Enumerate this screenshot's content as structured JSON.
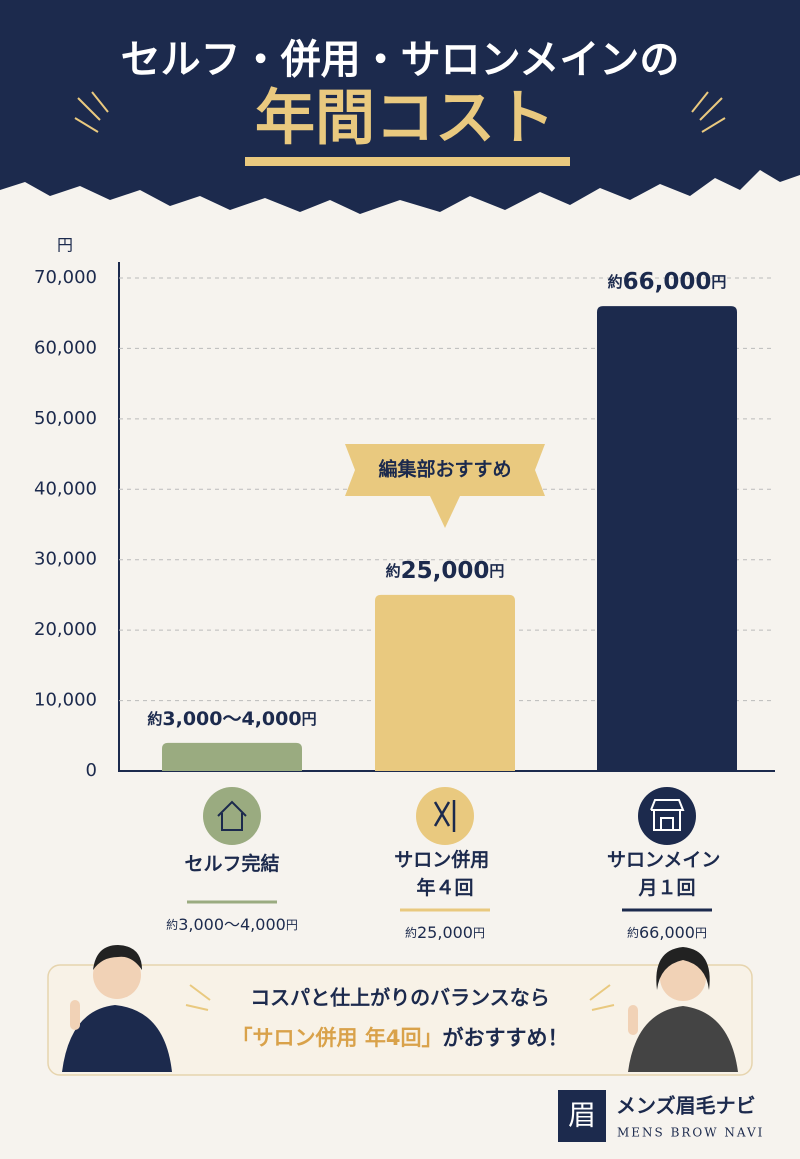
{
  "header": {
    "title_line1": "セルフ・併用・サロンメインの",
    "title_line2": "年間コスト"
  },
  "chart_data": {
    "type": "bar",
    "y_unit": "円",
    "categories": [
      "セルフ完結",
      "サロン併用 年４回",
      "サロンメイン 月１回"
    ],
    "values": [
      4000,
      25000,
      66000
    ],
    "value_labels": [
      "約3,000〜4,000円",
      "約25,000円",
      "約66,000円"
    ],
    "colors": [
      "#9aab80",
      "#e9c97f",
      "#1c2a4d"
    ],
    "category_notes": [
      "約3,000〜4,000円",
      "約25,000円",
      "約66,000円"
    ],
    "annotation": "編集部おすすめ",
    "ylim": [
      0,
      70000
    ],
    "yticks": [
      0,
      {
        "value": 10000,
        "label": "10,000"
      },
      {
        "value": 20000,
        "label": "20,000"
      },
      {
        "value": 30000,
        "label": "30,000"
      },
      {
        "value": 40000,
        "label": "40,000"
      },
      {
        "value": 50000,
        "label": "50,000"
      },
      {
        "value": 60000,
        "label": "60,000"
      },
      {
        "value": 70000,
        "label": "70,000"
      }
    ],
    "grid": true
  },
  "recommendation": {
    "line1": "コスパと仕上がりのバランスなら",
    "highlight": "「サロン併用 年4回」",
    "rest": "がおすすめ！"
  },
  "logo": {
    "mark": "眉",
    "name": "メンズ眉毛ナビ",
    "name_en": "MENS BROW NAVI"
  }
}
